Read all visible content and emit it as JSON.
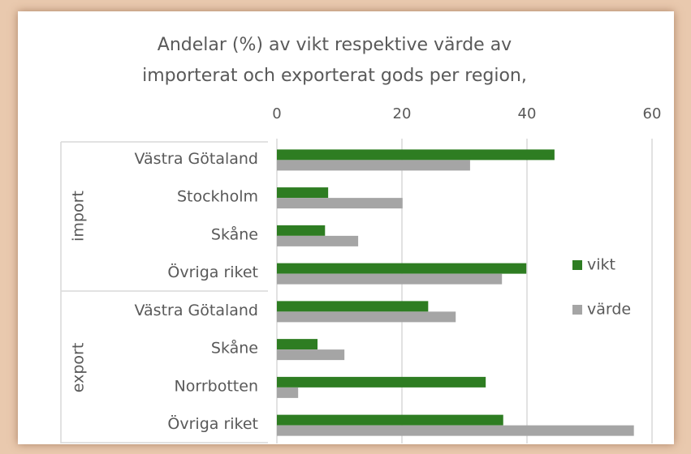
{
  "chart_data": {
    "type": "bar",
    "orientation": "horizontal",
    "title": [
      "Andelar (%) av vikt respektive värde av",
      "importerat och exporterat gods per region,"
    ],
    "groups": [
      {
        "name": "import",
        "categories": [
          "Västra Götaland",
          "Stockholm",
          "Skåne",
          "Övriga riket"
        ]
      },
      {
        "name": "export",
        "categories": [
          "Västra Götaland",
          "Skåne",
          "Norrbotten",
          "Övriga riket"
        ]
      }
    ],
    "series": [
      {
        "name": "vikt",
        "color": "#2e7d22",
        "values": [
          44.4,
          8.2,
          7.7,
          39.9,
          24.2,
          6.5,
          33.4,
          36.2
        ]
      },
      {
        "name": "värde",
        "color": "#a5a5a5",
        "values": [
          30.9,
          20.1,
          13.0,
          36.0,
          28.6,
          10.8,
          3.4,
          57.1
        ]
      }
    ],
    "xlim": [
      0,
      60
    ],
    "xticks": [
      0,
      20,
      40,
      60
    ],
    "grid": true,
    "legend": "right"
  }
}
